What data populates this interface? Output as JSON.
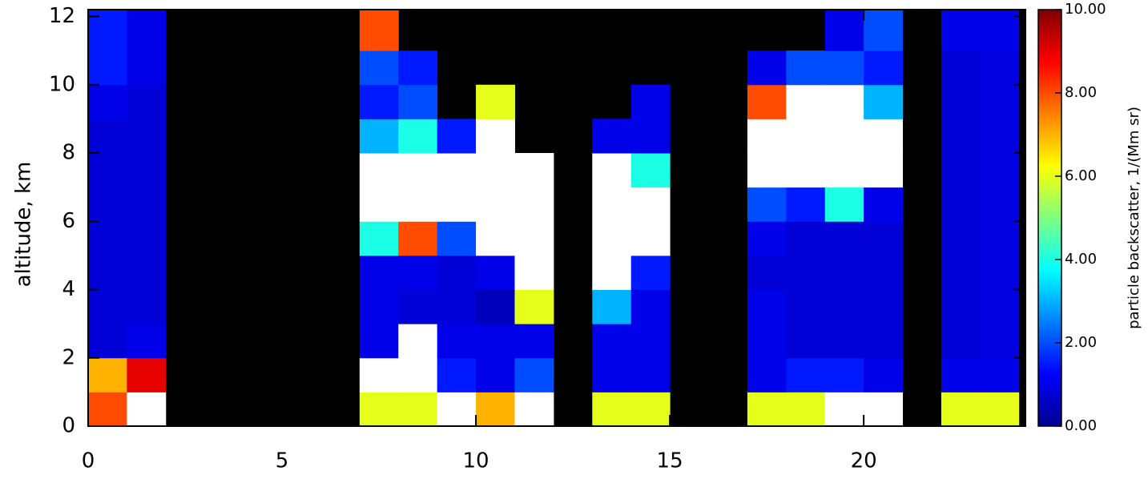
{
  "chart_data": {
    "type": "heatmap",
    "ylabel": "altitude, km",
    "colorbar_label": "particle backscatter, 1/(Mm sr)",
    "xbins": [
      0,
      1,
      2,
      3,
      4,
      5,
      6,
      7,
      8,
      9,
      10,
      11,
      12,
      13,
      14,
      15,
      16,
      17,
      18,
      19,
      20,
      21,
      22,
      23,
      24
    ],
    "ybins": [
      0,
      1,
      2,
      3,
      4,
      5,
      6,
      7,
      8,
      9,
      10,
      11,
      12.2
    ],
    "z": [
      [
        8,
        12,
        null,
        null,
        null,
        null,
        null,
        6,
        6,
        12,
        7,
        12,
        null,
        6,
        6,
        null,
        null,
        6,
        6,
        12,
        12,
        null,
        6,
        6
      ],
      [
        7,
        9,
        null,
        null,
        null,
        null,
        null,
        12,
        12,
        1.5,
        1,
        2,
        null,
        1,
        1,
        null,
        null,
        1,
        1.5,
        1.5,
        1,
        null,
        1,
        1
      ],
      [
        0.8,
        1,
        null,
        null,
        null,
        null,
        null,
        1,
        12,
        1,
        1,
        1,
        null,
        1,
        1,
        null,
        null,
        1,
        0.8,
        0.8,
        0.8,
        null,
        0.8,
        0.9
      ],
      [
        0.8,
        0.8,
        null,
        null,
        null,
        null,
        null,
        1,
        0.8,
        0.8,
        0.5,
        6,
        null,
        3,
        1,
        null,
        null,
        1,
        0.8,
        0.8,
        0.8,
        null,
        0.8,
        0.9
      ],
      [
        0.8,
        0.8,
        null,
        null,
        null,
        null,
        null,
        1,
        1,
        0.8,
        1,
        12,
        null,
        12,
        1.5,
        null,
        null,
        0.8,
        0.8,
        0.8,
        0.8,
        null,
        0.8,
        0.9
      ],
      [
        0.8,
        0.8,
        null,
        null,
        null,
        null,
        null,
        4,
        8,
        2,
        12,
        12,
        null,
        12,
        12,
        null,
        null,
        1,
        0.8,
        0.8,
        0.8,
        null,
        0.8,
        0.9
      ],
      [
        0.8,
        0.8,
        null,
        null,
        null,
        null,
        null,
        12,
        12,
        12,
        12,
        12,
        null,
        12,
        12,
        null,
        null,
        2,
        1.5,
        4,
        1,
        null,
        0.8,
        0.9
      ],
      [
        0.8,
        0.8,
        null,
        null,
        null,
        null,
        null,
        12,
        12,
        12,
        12,
        12,
        null,
        12,
        4,
        null,
        null,
        12,
        12,
        12,
        12,
        null,
        0.8,
        0.9
      ],
      [
        0.8,
        0.8,
        null,
        null,
        null,
        null,
        null,
        3,
        4,
        1.5,
        12,
        null,
        null,
        1,
        1,
        null,
        null,
        12,
        12,
        12,
        12,
        null,
        0.8,
        0.9
      ],
      [
        1,
        0.8,
        null,
        null,
        null,
        null,
        null,
        1.5,
        2,
        null,
        6,
        null,
        null,
        null,
        1,
        null,
        null,
        8,
        12,
        12,
        3,
        null,
        0.8,
        0.9
      ],
      [
        1.5,
        1,
        null,
        null,
        null,
        null,
        null,
        2,
        1.5,
        null,
        null,
        null,
        null,
        null,
        null,
        null,
        null,
        1,
        2,
        2,
        1.5,
        null,
        0.8,
        0.9
      ],
      [
        1.5,
        1,
        null,
        null,
        null,
        null,
        null,
        8,
        null,
        null,
        null,
        null,
        null,
        null,
        null,
        null,
        null,
        null,
        null,
        1,
        2,
        null,
        1,
        1
      ]
    ],
    "xlim": [
      0,
      24.17
    ],
    "ylim": [
      0,
      12.2
    ],
    "xticks": [
      0,
      5,
      10,
      15,
      20
    ],
    "yticks": [
      0,
      2,
      4,
      6,
      8,
      10,
      12
    ],
    "clim": [
      0,
      10
    ],
    "cticks": [
      {
        "value": 0,
        "label": "0.00"
      },
      {
        "value": 2,
        "label": "2.00"
      },
      {
        "value": 4,
        "label": "4.00"
      },
      {
        "value": 6,
        "label": "6.00"
      },
      {
        "value": 8,
        "label": "8.00"
      },
      {
        "value": 10,
        "label": "10.00"
      }
    ],
    "colormap": "jet",
    "nodata_color": "#000000",
    "over_color": "#ffffff"
  }
}
